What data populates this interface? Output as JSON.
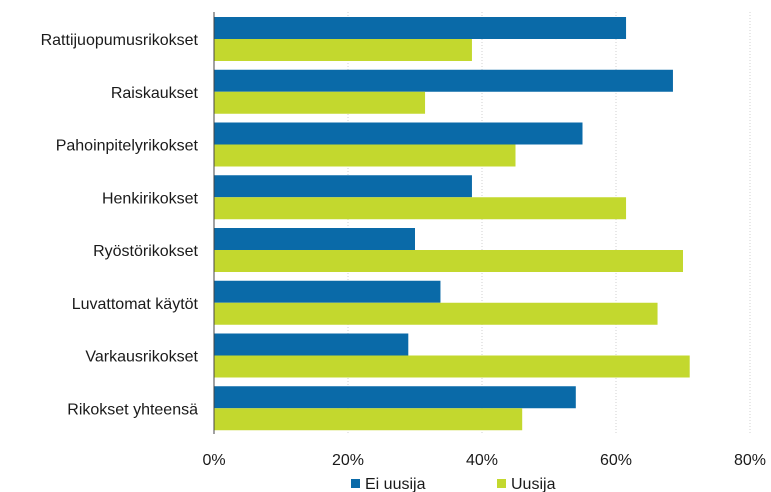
{
  "chart_data": {
    "type": "bar",
    "orientation": "horizontal",
    "categories": [
      "Rattijuopumusrikokset",
      "Raiskaukset",
      "Pahoinpitelyrikokset",
      "Henkirikokset",
      "Ryöstörikokset",
      "Luvattomat käytöt",
      "Varkausrikokset",
      "Rikokset yhteensä"
    ],
    "series": [
      {
        "name": "Ei uusija",
        "color": "#0a6aa8",
        "values": [
          61.5,
          68.5,
          55,
          38.5,
          30,
          33.8,
          29,
          54
        ]
      },
      {
        "name": "Uusija",
        "color": "#c3d82e",
        "values": [
          38.5,
          31.5,
          45,
          61.5,
          70,
          66.2,
          71,
          46
        ]
      }
    ],
    "x_ticks": [
      "0%",
      "20%",
      "40%",
      "60%",
      "80%"
    ],
    "xlim": [
      0,
      80
    ],
    "grid": true,
    "legend": "bottom"
  }
}
